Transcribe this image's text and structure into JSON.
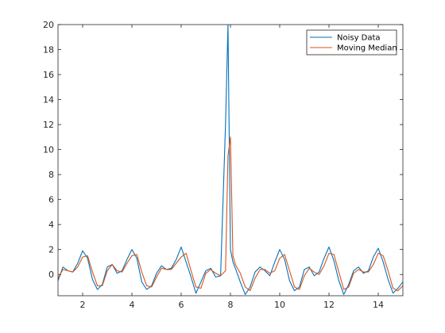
{
  "chart_data": {
    "type": "line",
    "title": "",
    "xlabel": "",
    "ylabel": "",
    "xlim": [
      1,
      15
    ],
    "ylim": [
      -1.7,
      20
    ],
    "xticks": [
      2,
      4,
      6,
      8,
      10,
      12,
      14
    ],
    "yticks": [
      0,
      2,
      4,
      6,
      8,
      10,
      12,
      14,
      16,
      18,
      20
    ],
    "grid": false,
    "legend_position": "top-right",
    "series": [
      {
        "name": "Noisy Data",
        "color": "#0072bd",
        "x": [
          1.0,
          1.2,
          1.4,
          1.6,
          1.8,
          2.0,
          2.2,
          2.4,
          2.6,
          2.8,
          3.0,
          3.2,
          3.4,
          3.6,
          3.8,
          4.0,
          4.2,
          4.4,
          4.6,
          4.8,
          5.0,
          5.2,
          5.4,
          5.6,
          5.8,
          6.0,
          6.2,
          6.4,
          6.6,
          6.8,
          7.0,
          7.2,
          7.4,
          7.6,
          7.8,
          7.9,
          8.0,
          8.1,
          8.2,
          8.4,
          8.6,
          8.8,
          9.0,
          9.2,
          9.4,
          9.6,
          9.8,
          10.0,
          10.2,
          10.4,
          10.6,
          10.8,
          11.0,
          11.2,
          11.4,
          11.6,
          11.8,
          12.0,
          12.2,
          12.4,
          12.6,
          12.8,
          13.0,
          13.2,
          13.4,
          13.6,
          13.8,
          14.0,
          14.2,
          14.4,
          14.6,
          14.8,
          15.0
        ],
        "y": [
          -0.5,
          0.6,
          0.3,
          0.2,
          0.9,
          1.9,
          1.3,
          -0.4,
          -1.2,
          -0.8,
          0.6,
          0.8,
          0.1,
          0.3,
          1.2,
          2.0,
          1.3,
          -0.6,
          -1.2,
          -0.9,
          0.1,
          0.7,
          0.4,
          0.5,
          1.2,
          2.2,
          1.0,
          -0.2,
          -1.5,
          -0.6,
          0.3,
          0.5,
          -0.2,
          -0.1,
          12.0,
          20.0,
          2.0,
          1.0,
          0.5,
          -0.6,
          -1.6,
          -1.0,
          0.2,
          0.6,
          0.3,
          -0.1,
          1.0,
          2.0,
          1.2,
          -0.5,
          -1.3,
          -1.0,
          0.4,
          0.6,
          -0.1,
          0.2,
          1.3,
          2.2,
          1.1,
          -0.5,
          -1.6,
          -0.8,
          0.3,
          0.6,
          0.1,
          0.3,
          1.4,
          2.1,
          1.0,
          -0.4,
          -1.5,
          -1.1,
          -0.6
        ]
      },
      {
        "name": "Moving Median",
        "color": "#d95319",
        "x": [
          1.0,
          1.2,
          1.4,
          1.6,
          1.8,
          2.0,
          2.2,
          2.4,
          2.6,
          2.8,
          3.0,
          3.2,
          3.4,
          3.6,
          3.8,
          4.0,
          4.2,
          4.4,
          4.6,
          4.8,
          5.0,
          5.2,
          5.4,
          5.6,
          5.8,
          6.0,
          6.2,
          6.4,
          6.6,
          6.8,
          7.0,
          7.2,
          7.4,
          7.6,
          7.8,
          7.9,
          8.0,
          8.1,
          8.2,
          8.4,
          8.6,
          8.8,
          9.0,
          9.2,
          9.4,
          9.6,
          9.8,
          10.0,
          10.2,
          10.4,
          10.6,
          10.8,
          11.0,
          11.2,
          11.4,
          11.6,
          11.8,
          12.0,
          12.2,
          12.4,
          12.6,
          12.8,
          13.0,
          13.2,
          13.4,
          13.6,
          13.8,
          14.0,
          14.2,
          14.4,
          14.6,
          14.8,
          15.0
        ],
        "y": [
          -0.3,
          0.4,
          0.3,
          0.2,
          0.6,
          1.4,
          1.5,
          0.2,
          -0.9,
          -0.9,
          0.3,
          0.8,
          0.3,
          0.2,
          0.9,
          1.5,
          1.6,
          0.2,
          -0.9,
          -1.0,
          -0.2,
          0.5,
          0.4,
          0.4,
          0.9,
          1.4,
          1.7,
          0.3,
          -1.0,
          -1.1,
          0.1,
          0.4,
          0.1,
          -0.1,
          0.3,
          9.5,
          11.0,
          1.5,
          0.8,
          0.1,
          -1.0,
          -1.3,
          -0.3,
          0.4,
          0.4,
          0.1,
          0.3,
          1.3,
          1.6,
          0.3,
          -1.0,
          -1.2,
          -0.1,
          0.5,
          0.2,
          0.0,
          0.7,
          1.7,
          1.6,
          0.2,
          -1.2,
          -1.0,
          0.1,
          0.4,
          0.2,
          0.2,
          0.8,
          1.7,
          1.5,
          0.3,
          -1.1,
          -1.3,
          -0.9
        ]
      }
    ]
  }
}
